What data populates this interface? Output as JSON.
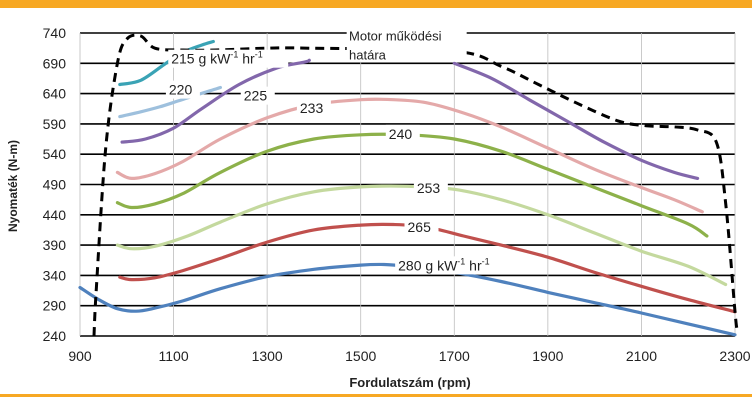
{
  "chart_data": {
    "type": "line",
    "xlabel": "Fordulatszám (rpm)",
    "ylabel": "Nyomaték (N-m)",
    "xlim": [
      900,
      2300
    ],
    "ylim": [
      240,
      740
    ],
    "x_ticks": [
      "900",
      "1100",
      "1300",
      "1500",
      "1700",
      "1900",
      "2100",
      "2300"
    ],
    "y_ticks": [
      "240",
      "290",
      "340",
      "390",
      "440",
      "490",
      "540",
      "590",
      "640",
      "690",
      "740"
    ],
    "grid": "horizontal",
    "boundary": {
      "label": "Motor működési határa",
      "label_lines": [
        "Motor működési",
        "határa"
      ],
      "color": "#000000",
      "style": "dashed",
      "points": [
        [
          930,
          240
        ],
        [
          935,
          320
        ],
        [
          955,
          550
        ],
        [
          980,
          690
        ],
        [
          1000,
          730
        ],
        [
          1030,
          735
        ],
        [
          1060,
          715
        ],
        [
          1120,
          712
        ],
        [
          1190,
          712
        ],
        [
          1300,
          715
        ],
        [
          1390,
          715
        ],
        [
          1700,
          710
        ],
        [
          1800,
          685
        ],
        [
          1880,
          655
        ],
        [
          1960,
          625
        ],
        [
          2050,
          595
        ],
        [
          2110,
          587
        ],
        [
          2170,
          585
        ],
        [
          2220,
          580
        ],
        [
          2260,
          560
        ],
        [
          2280,
          460
        ],
        [
          2300,
          280
        ],
        [
          2305,
          250
        ]
      ]
    },
    "series": [
      {
        "name": "215 g kW⁻¹ hr⁻¹",
        "label": "215 g kW",
        "color": "#3aa3b5",
        "points": [
          [
            985,
            655
          ],
          [
            1030,
            662
          ],
          [
            1080,
            688
          ],
          [
            1120,
            708
          ],
          [
            1160,
            720
          ],
          [
            1185,
            726
          ]
        ]
      },
      {
        "name": "220",
        "label": "220",
        "color": "#9ec0dd",
        "points": [
          [
            985,
            602
          ],
          [
            1030,
            610
          ],
          [
            1070,
            618
          ],
          [
            1110,
            628
          ],
          [
            1150,
            638
          ],
          [
            1200,
            650
          ]
        ]
      },
      {
        "name": "225",
        "label": "225",
        "color": "#8267ab",
        "points": [
          [
            990,
            560
          ],
          [
            1040,
            565
          ],
          [
            1100,
            583
          ],
          [
            1160,
            615
          ],
          [
            1240,
            655
          ],
          [
            1320,
            682
          ],
          [
            1380,
            692
          ],
          [
            1390,
            695
          ]
        ],
        "points_b": [
          [
            1700,
            690
          ],
          [
            1780,
            665
          ],
          [
            1860,
            630
          ],
          [
            1940,
            595
          ],
          [
            2020,
            560
          ],
          [
            2100,
            530
          ],
          [
            2170,
            510
          ],
          [
            2220,
            500
          ]
        ]
      },
      {
        "name": "233",
        "label": "233",
        "color": "#e4a9a9",
        "points": [
          [
            980,
            510
          ],
          [
            1010,
            500
          ],
          [
            1060,
            508
          ],
          [
            1120,
            528
          ],
          [
            1200,
            565
          ],
          [
            1300,
            600
          ],
          [
            1400,
            622
          ],
          [
            1500,
            630
          ],
          [
            1570,
            630
          ],
          [
            1640,
            625
          ],
          [
            1720,
            608
          ],
          [
            1800,
            585
          ],
          [
            1900,
            550
          ],
          [
            2000,
            515
          ],
          [
            2100,
            485
          ],
          [
            2170,
            465
          ],
          [
            2230,
            445
          ]
        ]
      },
      {
        "name": "240",
        "label": "240",
        "color": "#8db14a",
        "points": [
          [
            980,
            460
          ],
          [
            1010,
            452
          ],
          [
            1060,
            458
          ],
          [
            1120,
            475
          ],
          [
            1200,
            510
          ],
          [
            1300,
            545
          ],
          [
            1400,
            565
          ],
          [
            1500,
            572
          ],
          [
            1600,
            572
          ],
          [
            1700,
            565
          ],
          [
            1800,
            545
          ],
          [
            1900,
            515
          ],
          [
            2000,
            485
          ],
          [
            2100,
            455
          ],
          [
            2200,
            425
          ],
          [
            2240,
            405
          ]
        ]
      },
      {
        "name": "253",
        "label": "253",
        "color": "#c4d99e",
        "points": [
          [
            980,
            390
          ],
          [
            1010,
            384
          ],
          [
            1060,
            388
          ],
          [
            1130,
            405
          ],
          [
            1200,
            428
          ],
          [
            1300,
            458
          ],
          [
            1400,
            478
          ],
          [
            1500,
            486
          ],
          [
            1600,
            487
          ],
          [
            1700,
            482
          ],
          [
            1800,
            465
          ],
          [
            1900,
            440
          ],
          [
            2000,
            410
          ],
          [
            2100,
            380
          ],
          [
            2200,
            355
          ],
          [
            2280,
            325
          ]
        ]
      },
      {
        "name": "265",
        "label": "265",
        "color": "#c0504d",
        "points": [
          [
            985,
            337
          ],
          [
            1010,
            333
          ],
          [
            1060,
            336
          ],
          [
            1120,
            348
          ],
          [
            1200,
            368
          ],
          [
            1300,
            395
          ],
          [
            1400,
            415
          ],
          [
            1500,
            423
          ],
          [
            1570,
            424
          ],
          [
            1640,
            420
          ],
          [
            1720,
            405
          ],
          [
            1800,
            390
          ],
          [
            1900,
            370
          ],
          [
            2000,
            345
          ],
          [
            2100,
            322
          ],
          [
            2200,
            300
          ],
          [
            2300,
            280
          ]
        ]
      },
      {
        "name": "280 g kW⁻¹ hr⁻¹",
        "label": "280 g kW",
        "color": "#4f81bd",
        "points": [
          [
            900,
            320
          ],
          [
            940,
            300
          ],
          [
            980,
            285
          ],
          [
            1020,
            281
          ],
          [
            1060,
            286
          ],
          [
            1120,
            298
          ],
          [
            1200,
            318
          ],
          [
            1300,
            338
          ],
          [
            1400,
            350
          ],
          [
            1500,
            357
          ],
          [
            1550,
            358
          ],
          [
            1600,
            355
          ],
          [
            1700,
            345
          ],
          [
            1800,
            330
          ],
          [
            1900,
            312
          ],
          [
            2000,
            295
          ],
          [
            2100,
            278
          ],
          [
            2200,
            260
          ],
          [
            2300,
            242
          ]
        ]
      }
    ],
    "series_labels": [
      {
        "text": "215 g kW",
        "sup": "-1",
        "mid": " hr",
        "sup2": "-1",
        "x": 1095,
        "y": 691
      },
      {
        "text": "220",
        "x": 1090,
        "y": 640
      },
      {
        "text": "225",
        "x": 1250,
        "y": 630
      },
      {
        "text": "233",
        "x": 1370,
        "y": 610
      },
      {
        "text": "240",
        "x": 1560,
        "y": 567
      },
      {
        "text": "253",
        "x": 1620,
        "y": 478
      },
      {
        "text": "265",
        "x": 1600,
        "y": 413
      },
      {
        "text": "280 g kW",
        "sup": "-1",
        "mid": " hr",
        "sup2": "-1",
        "x": 1580,
        "y": 350
      }
    ]
  }
}
